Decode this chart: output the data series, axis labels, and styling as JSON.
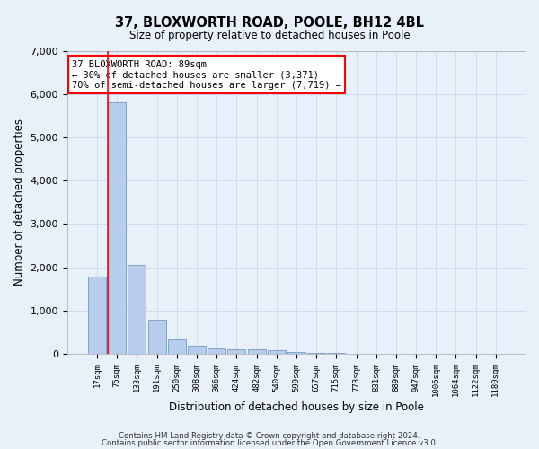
{
  "title": "37, BLOXWORTH ROAD, POOLE, BH12 4BL",
  "subtitle": "Size of property relative to detached houses in Poole",
  "xlabel": "Distribution of detached houses by size in Poole",
  "ylabel": "Number of detached properties",
  "categories": [
    "17sqm",
    "75sqm",
    "133sqm",
    "191sqm",
    "250sqm",
    "308sqm",
    "366sqm",
    "424sqm",
    "482sqm",
    "540sqm",
    "599sqm",
    "657sqm",
    "715sqm",
    "773sqm",
    "831sqm",
    "889sqm",
    "947sqm",
    "1006sqm",
    "1064sqm",
    "1122sqm",
    "1180sqm"
  ],
  "values": [
    1780,
    5800,
    2060,
    800,
    340,
    190,
    130,
    110,
    100,
    90,
    50,
    30,
    20,
    10,
    5,
    5,
    5,
    5,
    5,
    5,
    5
  ],
  "bar_color": "#b8ccec",
  "bar_edge_color": "#7399c6",
  "property_bar_index": 1,
  "annotation_text": "37 BLOXWORTH ROAD: 89sqm\n← 30% of detached houses are smaller (3,371)\n70% of semi-detached houses are larger (7,719) →",
  "annotation_box_color": "white",
  "annotation_box_edge": "red",
  "ylim": [
    0,
    7000
  ],
  "yticks": [
    0,
    1000,
    2000,
    3000,
    4000,
    5000,
    6000,
    7000
  ],
  "grid_color": "#c8d8ee",
  "bg_color": "#e8f0fa",
  "footnote1": "Contains HM Land Registry data © Crown copyright and database right 2024.",
  "footnote2": "Contains public sector information licensed under the Open Government Licence v3.0."
}
